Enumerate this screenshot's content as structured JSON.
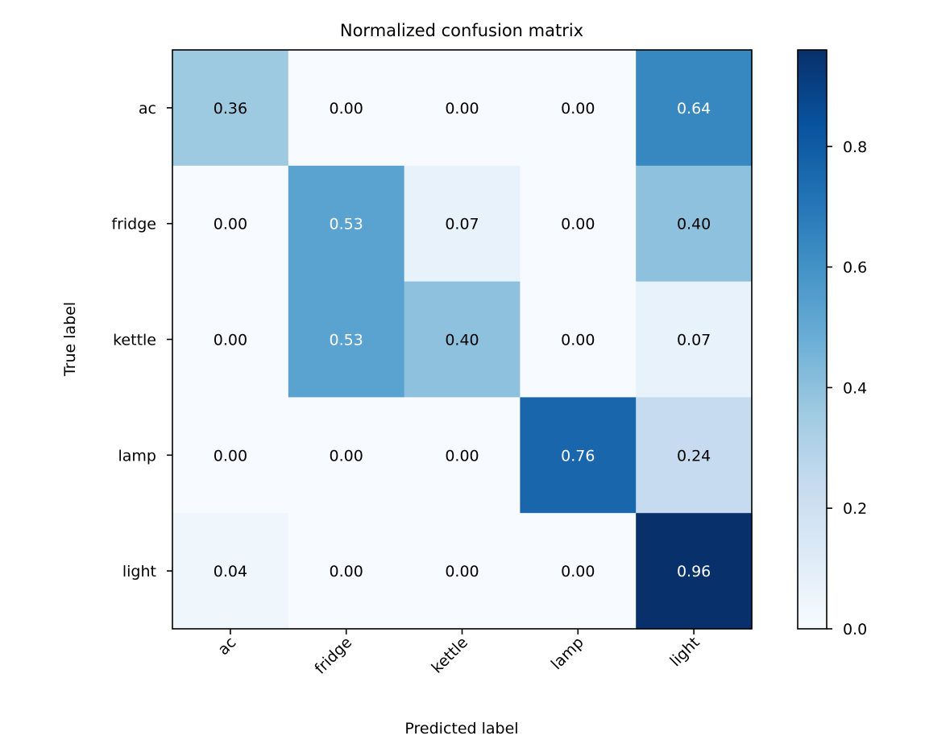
{
  "chart_data": {
    "type": "heatmap",
    "title": "Normalized confusion matrix",
    "xlabel": "Predicted label",
    "ylabel": "True label",
    "x_categories": [
      "ac",
      "fridge",
      "kettle",
      "lamp",
      "light"
    ],
    "y_categories": [
      "ac",
      "fridge",
      "kettle",
      "lamp",
      "light"
    ],
    "values": [
      [
        0.36,
        0.0,
        0.0,
        0.0,
        0.64
      ],
      [
        0.0,
        0.53,
        0.07,
        0.0,
        0.4
      ],
      [
        0.0,
        0.53,
        0.4,
        0.0,
        0.07
      ],
      [
        0.0,
        0.0,
        0.0,
        0.76,
        0.24
      ],
      [
        0.04,
        0.0,
        0.0,
        0.0,
        0.96
      ]
    ],
    "value_labels": [
      [
        "0.36",
        "0.00",
        "0.00",
        "0.00",
        "0.64"
      ],
      [
        "0.00",
        "0.53",
        "0.07",
        "0.00",
        "0.40"
      ],
      [
        "0.00",
        "0.53",
        "0.40",
        "0.00",
        "0.07"
      ],
      [
        "0.00",
        "0.00",
        "0.00",
        "0.76",
        "0.24"
      ],
      [
        "0.04",
        "0.00",
        "0.00",
        "0.00",
        "0.96"
      ]
    ],
    "colormap": "Blues",
    "colorbar": {
      "range": [
        0.0,
        0.96
      ],
      "ticks": [
        0.0,
        0.2,
        0.4,
        0.6,
        0.8
      ],
      "tick_labels": [
        "0.0",
        "0.2",
        "0.4",
        "0.6",
        "0.8"
      ]
    },
    "text_color_threshold": 0.48,
    "grid": false,
    "legend": "none"
  }
}
